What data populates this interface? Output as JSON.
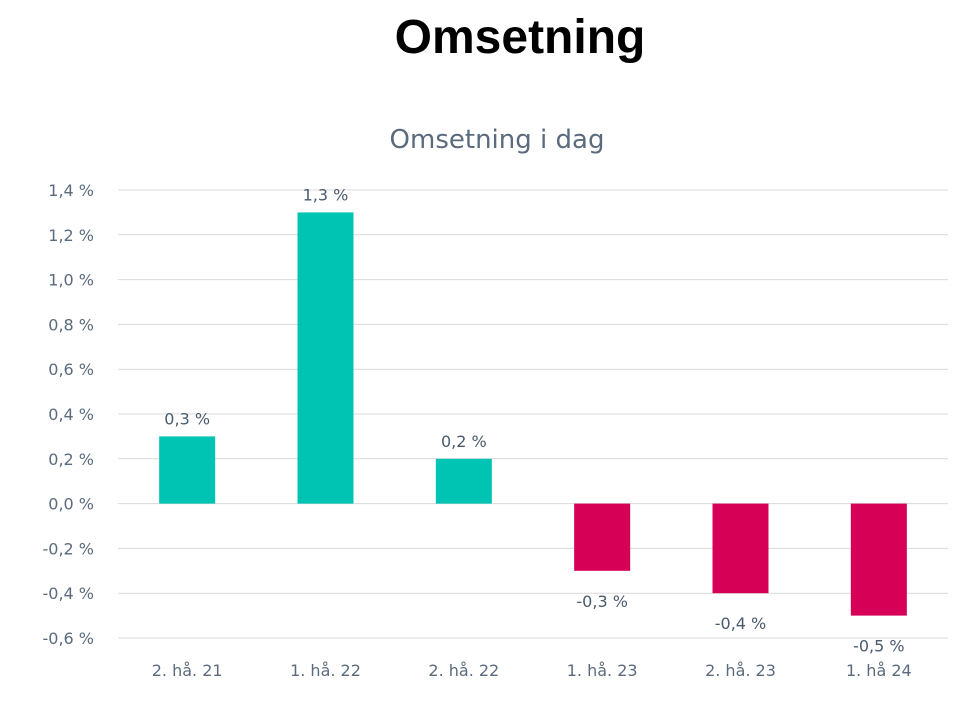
{
  "page": {
    "title": "Omsetning"
  },
  "chart_data": {
    "type": "bar",
    "title": "Omsetning i dag",
    "xlabel": "",
    "ylabel": "",
    "categories": [
      "2. hå. 21",
      "1. hå. 22",
      "2. hå. 22",
      "1. hå. 23",
      "2. hå. 23",
      "1. hå 24"
    ],
    "values": [
      0.3,
      1.3,
      0.2,
      -0.3,
      -0.4,
      -0.5
    ],
    "data_labels": [
      "0,3 %",
      "1,3 %",
      "0,2 %",
      "-0,3 %",
      "-0,4 %",
      "-0,5 %"
    ],
    "ylim": [
      -0.6,
      1.4
    ],
    "yticks": [
      1.4,
      1.2,
      1.0,
      0.8,
      0.6,
      0.4,
      0.2,
      0.0,
      -0.2,
      -0.4,
      -0.6
    ],
    "ytick_labels": [
      "1,4 %",
      "1,2 %",
      "1,0 %",
      "0,8 %",
      "0,6 %",
      "0,4 %",
      "0,2 %",
      "0,0 %",
      "-0,2 %",
      "-0,4 %",
      "-0,6 %"
    ],
    "grid": true,
    "legend": "none",
    "colors": {
      "positive": "#00c4b3",
      "negative": "#d60057",
      "grid": "#d9d9d9",
      "text": "#5b6b7e"
    }
  }
}
